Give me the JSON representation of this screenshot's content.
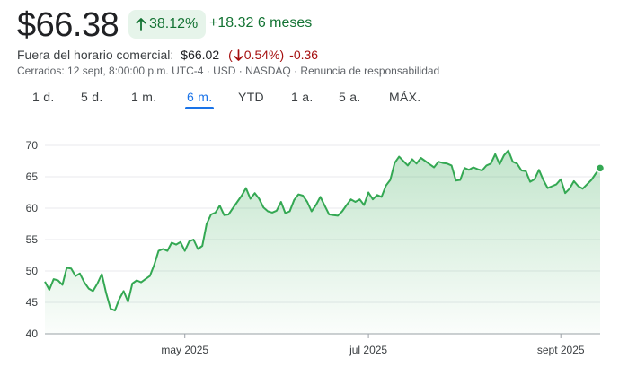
{
  "header": {
    "price": "$66.38",
    "change_pct": "38.12%",
    "change_abs": "+18.32 6 meses"
  },
  "after_hours": {
    "label": "Fuera del horario comercial:",
    "price": "$66.02",
    "pct": "0.54%",
    "abs": "-0.36",
    "paren_open": "(",
    "paren_close": ")"
  },
  "meta": "Cerrados: 12 sept, 8:00:00 p.m. UTC-4 · USD · NASDAQ · Renuncia de responsabilidad",
  "tabs": [
    {
      "label": "1 d."
    },
    {
      "label": "5 d."
    },
    {
      "label": "1 m."
    },
    {
      "label": "6 m.",
      "active": true
    },
    {
      "label": "YTD"
    },
    {
      "label": "1 a."
    },
    {
      "label": "5 a."
    },
    {
      "label": "MÁX."
    }
  ],
  "colors": {
    "up": "#137333",
    "down": "#a50e0e",
    "line": "#34a853",
    "accent": "#1a73e8"
  },
  "chart_data": {
    "type": "area",
    "y_ticks": [
      40,
      45,
      50,
      55,
      60,
      65,
      70
    ],
    "ylim": [
      40,
      72
    ],
    "x_ticks": [
      {
        "label": "may 2025",
        "index": 32
      },
      {
        "label": "jul 2025",
        "index": 74
      },
      {
        "label": "sept 2025",
        "index": 118
      }
    ],
    "grid": true,
    "values": [
      48.3,
      47,
      48.7,
      48.5,
      47.8,
      50.5,
      50.4,
      49.2,
      49.6,
      48.2,
      47.2,
      46.8,
      48,
      49.5,
      46.5,
      44,
      43.7,
      45.5,
      46.8,
      45.1,
      48,
      48.5,
      48.2,
      48.7,
      49.2,
      51,
      53.2,
      53.5,
      53.2,
      54.5,
      54.2,
      54.6,
      53.2,
      54.7,
      55,
      53.5,
      54,
      57.5,
      59,
      59.3,
      60.4,
      58.9,
      59,
      60,
      61,
      62,
      63.2,
      61.5,
      62.4,
      61.5,
      60.1,
      59.5,
      59.3,
      59.6,
      61,
      59.2,
      59.5,
      61.3,
      62.2,
      62,
      61,
      59.5,
      60.5,
      61.8,
      60.4,
      59,
      58.9,
      58.8,
      59.5,
      60.5,
      61.4,
      61,
      61.4,
      60.5,
      62.5,
      61.4,
      62.1,
      61.8,
      63.6,
      64.5,
      67.2,
      68.2,
      67.5,
      66.8,
      67.8,
      67.1,
      68,
      67.5,
      67,
      66.5,
      67.4,
      67.2,
      67.1,
      66.8,
      64.4,
      64.5,
      66.4,
      66.1,
      66.5,
      66.2,
      66,
      66.8,
      67.1,
      68.6,
      67,
      68.4,
      69.2,
      67.4,
      67.1,
      66,
      65.9,
      64.2,
      64.6,
      66.1,
      64.5,
      63.2,
      63.5,
      63.8,
      64.6,
      62.4,
      63.1,
      64.3,
      63.5,
      63.1,
      63.8,
      64.5,
      65.5,
      66.38
    ]
  }
}
